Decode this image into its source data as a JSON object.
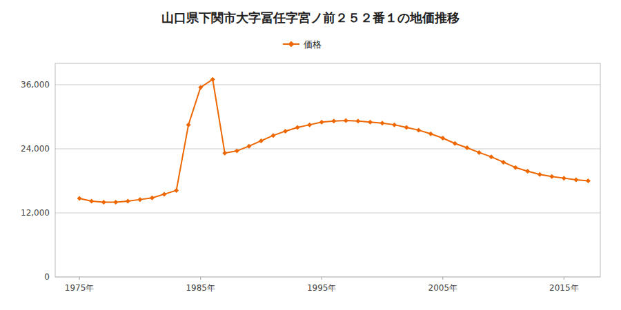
{
  "chart_data": {
    "type": "line",
    "title": "山口県下関市大字冨任字宮ノ前２５２番１の地価推移",
    "x": [
      1975,
      1976,
      1977,
      1978,
      1979,
      1980,
      1981,
      1982,
      1983,
      1984,
      1985,
      1986,
      1987,
      1988,
      1989,
      1990,
      1991,
      1992,
      1993,
      1994,
      1995,
      1996,
      1997,
      1998,
      1999,
      2000,
      2001,
      2002,
      2003,
      2004,
      2005,
      2006,
      2007,
      2008,
      2009,
      2010,
      2011,
      2012,
      2013,
      2014,
      2015,
      2016,
      2017
    ],
    "series": [
      {
        "name": "価格",
        "color": "#EE6600",
        "marker": "diamond",
        "values": [
          14700,
          14200,
          14000,
          14000,
          14200,
          14500,
          14800,
          15500,
          16200,
          28500,
          35500,
          37000,
          23200,
          23600,
          24500,
          25500,
          26500,
          27300,
          28000,
          28500,
          29000,
          29200,
          29300,
          29200,
          29000,
          28800,
          28500,
          28000,
          27500,
          26800,
          26000,
          25000,
          24200,
          23300,
          22500,
          21500,
          20500,
          19800,
          19200,
          18800,
          18500,
          18200,
          18000
        ]
      }
    ],
    "xlim": [
      1973,
      2018
    ],
    "xticks": [
      {
        "value": 1975,
        "label": "1975年"
      },
      {
        "value": 1985,
        "label": "1985年"
      },
      {
        "value": 1995,
        "label": "1995年"
      },
      {
        "value": 2005,
        "label": "2005年"
      },
      {
        "value": 2015,
        "label": "2015年"
      }
    ],
    "ylim": [
      0,
      40000
    ],
    "yticks": [
      0,
      {
        "value": 12000,
        "label": "12,000"
      },
      {
        "value": 24000,
        "label": "24,000"
      },
      {
        "value": 36000,
        "label": "36,000"
      }
    ],
    "grid": "y",
    "legend": "top"
  }
}
